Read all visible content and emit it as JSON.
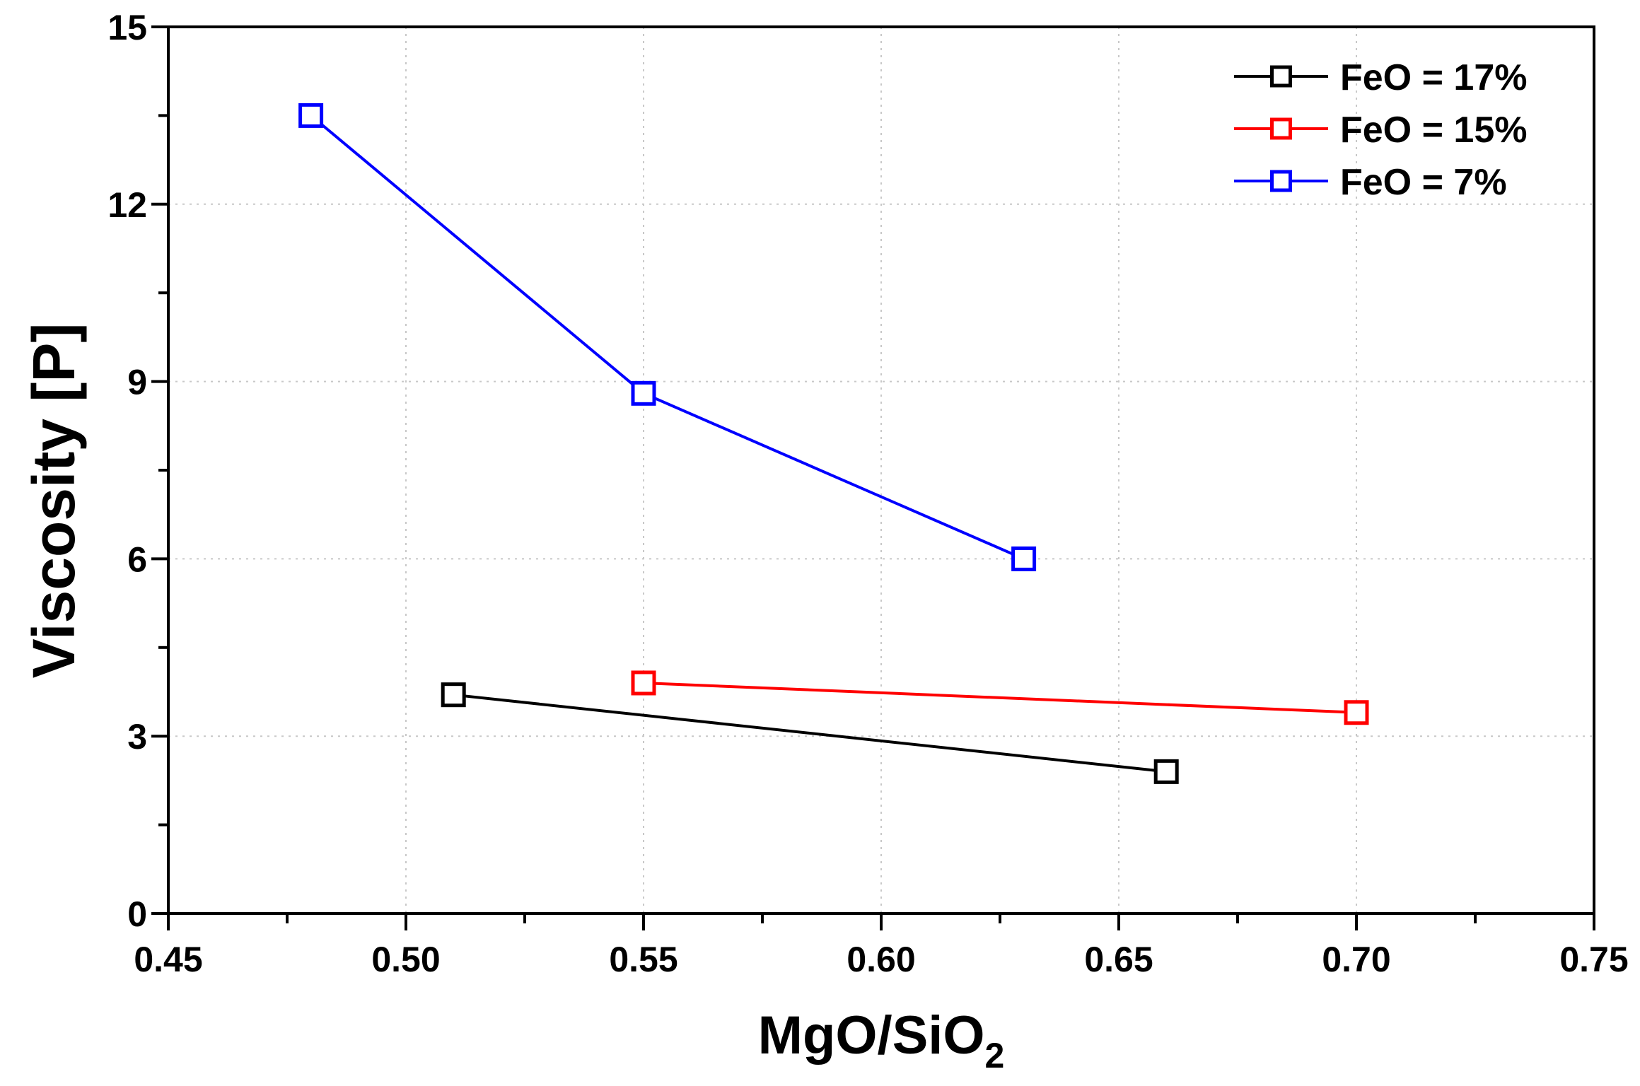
{
  "chart_data": {
    "type": "line",
    "title": "",
    "xlabel": "MgO/SiO",
    "xlabel_subscript": "2",
    "ylabel": "Viscosity [P]",
    "xlim": [
      0.45,
      0.75
    ],
    "ylim": [
      0,
      15
    ],
    "x_ticks": [
      0.45,
      0.5,
      0.55,
      0.6,
      0.65,
      0.7,
      0.75
    ],
    "x_tick_labels": [
      "0.45",
      "0.50",
      "0.55",
      "0.60",
      "0.65",
      "0.70",
      "0.75"
    ],
    "y_ticks": [
      0,
      3,
      6,
      9,
      12,
      15
    ],
    "y_tick_labels": [
      "0",
      "3",
      "6",
      "9",
      "12",
      "15"
    ],
    "grid": true,
    "legend_position": "top-right",
    "marker": "open-square",
    "series": [
      {
        "name": "FeO = 17%",
        "color": "#000000",
        "x": [
          0.51,
          0.66
        ],
        "y": [
          3.7,
          2.4
        ]
      },
      {
        "name": "FeO = 15%",
        "color": "#ff0000",
        "x": [
          0.55,
          0.7
        ],
        "y": [
          3.9,
          3.4
        ]
      },
      {
        "name": "FeO = 7%",
        "color": "#0000ff",
        "x": [
          0.48,
          0.55,
          0.63
        ],
        "y": [
          13.5,
          8.8,
          6.0
        ]
      }
    ]
  }
}
